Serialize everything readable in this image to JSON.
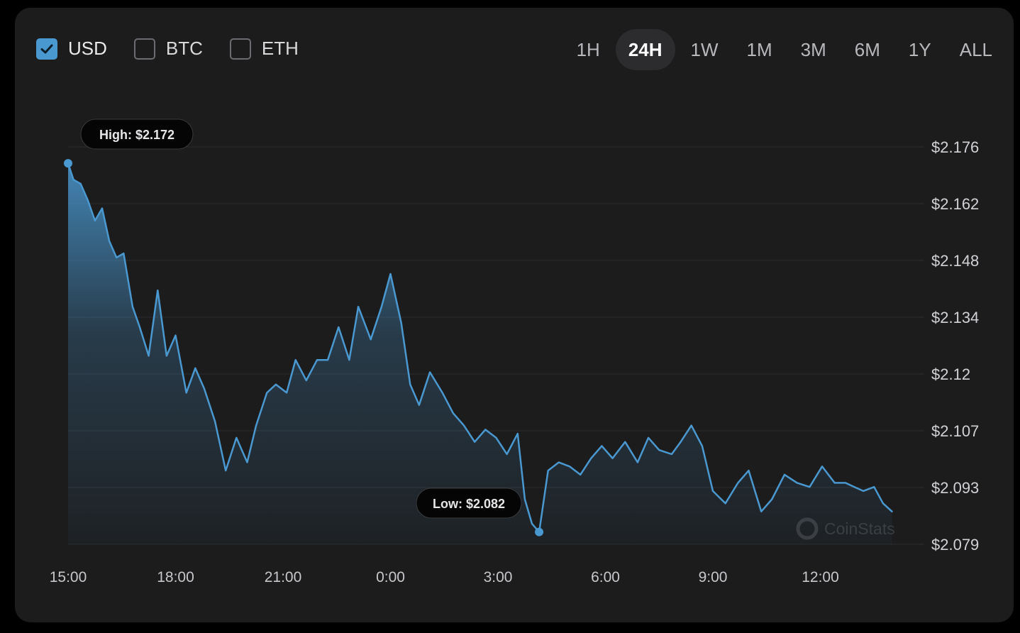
{
  "currencies": [
    {
      "label": "USD",
      "checked": true
    },
    {
      "label": "BTC",
      "checked": false
    },
    {
      "label": "ETH",
      "checked": false
    }
  ],
  "ranges": [
    "1H",
    "24H",
    "1W",
    "1M",
    "3M",
    "6M",
    "1Y",
    "ALL"
  ],
  "active_range": "24H",
  "watermark": "CoinStats",
  "colors": {
    "line": "#4a98d0",
    "accent": "#4a98d0",
    "background": "#1c1c1d"
  },
  "chart_data": {
    "type": "area",
    "ylim": [
      2.079,
      2.176
    ],
    "y_ticks": [
      "$2.176",
      "$2.162",
      "$2.148",
      "$2.134",
      "$2.12",
      "$2.107",
      "$2.093",
      "$2.079"
    ],
    "x_ticks": [
      "15:00",
      "18:00",
      "21:00",
      "0:00",
      "3:00",
      "6:00",
      "9:00",
      "12:00"
    ],
    "grid": true,
    "annotations": {
      "high_label": "High: $2.172",
      "low_label": "Low: $2.082"
    },
    "series": [
      {
        "x": [
          15.0,
          15.15,
          15.35,
          15.55,
          15.75,
          15.95,
          16.15,
          16.35,
          16.55,
          16.8,
          17.0,
          17.25,
          17.5,
          17.75,
          18.0,
          18.3,
          18.55,
          18.8,
          19.1,
          19.4,
          19.7,
          20.0,
          20.25,
          20.55,
          20.8,
          21.1,
          21.35,
          21.65,
          21.95,
          22.25,
          22.55,
          22.85,
          23.1,
          23.45,
          23.75,
          24.0,
          24.3,
          24.55,
          24.8,
          25.1,
          25.45,
          25.75,
          26.05,
          26.35,
          26.65,
          26.95,
          27.25,
          27.55,
          27.75,
          27.95,
          28.15,
          28.4,
          28.7,
          29.0,
          29.3,
          29.6,
          29.9,
          30.2,
          30.55,
          30.9,
          31.2,
          31.5,
          31.85,
          32.1,
          32.4,
          32.7,
          33.0,
          33.35,
          33.7,
          34.0,
          34.35,
          34.65,
          35.0,
          35.35,
          35.7,
          36.05,
          36.4,
          36.7,
          36.95,
          37.2,
          37.5,
          37.75,
          38.0
        ],
        "y": [
          2.172,
          2.168,
          2.167,
          2.163,
          2.158,
          2.161,
          2.153,
          2.149,
          2.15,
          2.137,
          2.132,
          2.125,
          2.141,
          2.125,
          2.13,
          2.116,
          2.122,
          2.117,
          2.109,
          2.097,
          2.105,
          2.099,
          2.108,
          2.116,
          2.118,
          2.116,
          2.124,
          2.119,
          2.124,
          2.124,
          2.132,
          2.124,
          2.137,
          2.129,
          2.137,
          2.145,
          2.133,
          2.118,
          2.113,
          2.121,
          2.116,
          2.111,
          2.108,
          2.104,
          2.107,
          2.105,
          2.101,
          2.106,
          2.09,
          2.084,
          2.082,
          2.097,
          2.099,
          2.098,
          2.096,
          2.1,
          2.103,
          2.1,
          2.104,
          2.099,
          2.105,
          2.102,
          2.101,
          2.104,
          2.108,
          2.103,
          2.092,
          2.089,
          2.094,
          2.097,
          2.087,
          2.09,
          2.096,
          2.094,
          2.093,
          2.098,
          2.094,
          2.094,
          2.093,
          2.092,
          2.093,
          2.089,
          2.087
        ]
      }
    ]
  }
}
